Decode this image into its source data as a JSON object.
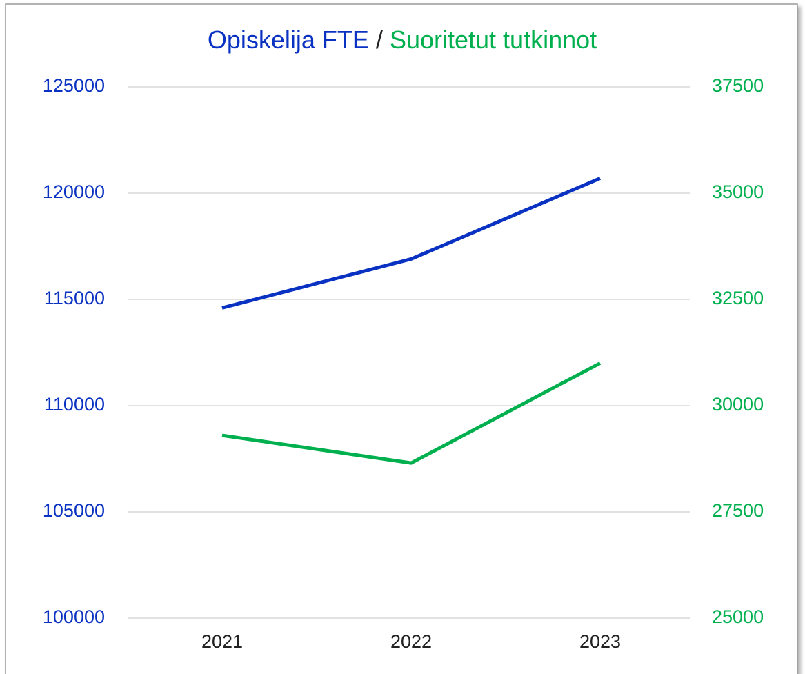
{
  "chart_data": {
    "type": "line",
    "title_separator": "/",
    "categories": [
      "2021",
      "2022",
      "2023"
    ],
    "series": [
      {
        "name": "Opiskelija FTE",
        "color": "#0a32c2",
        "values": [
          114600,
          116900,
          120700
        ]
      },
      {
        "name": "Suoritetut tutkinnot",
        "color": "#00b04f",
        "axis": "y2",
        "values": [
          29300,
          28650,
          31000
        ]
      }
    ],
    "ylim": [
      100000,
      125000
    ],
    "yticks": [
      100000,
      105000,
      110000,
      115000,
      120000,
      125000
    ],
    "y2lim": [
      25000,
      37500
    ],
    "y2ticks": [
      25000,
      27500,
      30000,
      32500,
      35000,
      37500
    ],
    "grid": true
  }
}
